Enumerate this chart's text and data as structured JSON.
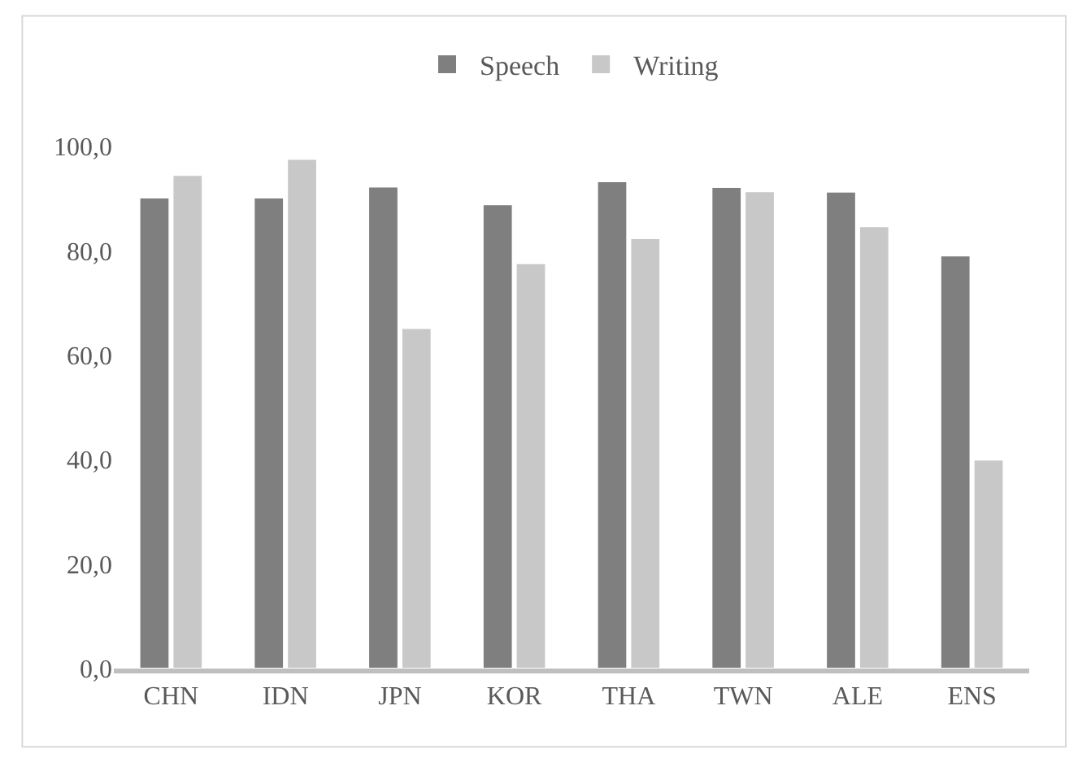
{
  "chart_data": {
    "type": "bar",
    "categories": [
      "CHN",
      "IDN",
      "JPN",
      "KOR",
      "THA",
      "TWN",
      "ALE",
      "ENS"
    ],
    "series": [
      {
        "name": "Speech",
        "color": "#7f7f7f",
        "values": [
          90.2,
          90.2,
          92.3,
          88.9,
          93.3,
          92.2,
          91.3,
          79.1
        ]
      },
      {
        "name": "Writing",
        "color": "#c8c8c8",
        "values": [
          94.5,
          97.6,
          65.2,
          77.6,
          82.4,
          91.4,
          84.7,
          40.0
        ]
      }
    ],
    "ylim": [
      0,
      100
    ],
    "yticks": [
      {
        "value": 0,
        "label": "0,0"
      },
      {
        "value": 20,
        "label": "20,0"
      },
      {
        "value": 40,
        "label": "40,0"
      },
      {
        "value": 60,
        "label": "60,0"
      },
      {
        "value": 80,
        "label": "80,0"
      },
      {
        "value": 100,
        "label": "100,0"
      }
    ],
    "legend": "top"
  }
}
